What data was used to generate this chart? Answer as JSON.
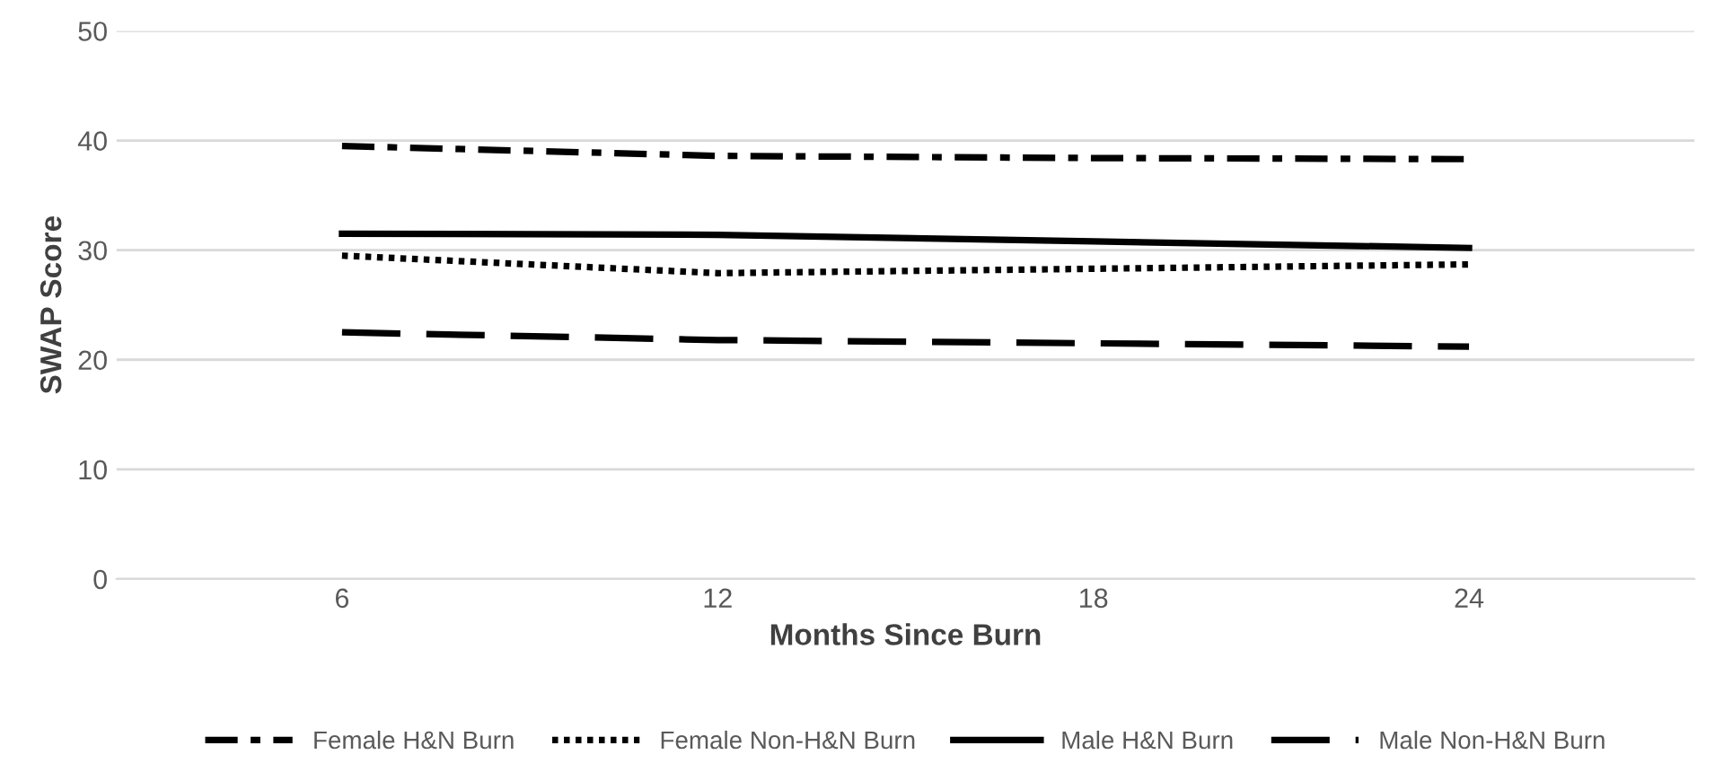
{
  "chart_data": {
    "type": "line",
    "xlabel": "Months Since Burn",
    "ylabel": "SWAP Score",
    "categories": [
      "6",
      "12",
      "18",
      "24"
    ],
    "ylim": [
      0,
      50
    ],
    "yticks": [
      0,
      10,
      20,
      30,
      40,
      50
    ],
    "grid": "y",
    "legend": "bottom",
    "marker": "none",
    "series": [
      {
        "name": "Female H&N Burn",
        "color": "#000000",
        "line_style": "dashdot",
        "values": [
          39.5,
          38.6,
          38.4,
          38.3
        ]
      },
      {
        "name": "Female Non-H&N Burn",
        "color": "#000000",
        "line_style": "dotted",
        "values": [
          29.5,
          27.9,
          28.3,
          28.7
        ]
      },
      {
        "name": "Male H&N Burn",
        "color": "#000000",
        "line_style": "solid",
        "values": [
          31.5,
          31.4,
          30.8,
          30.2
        ]
      },
      {
        "name": "Male Non-H&N Burn",
        "color": "#000000",
        "line_style": "dashed",
        "values": [
          22.5,
          21.8,
          21.5,
          21.2
        ]
      }
    ]
  }
}
